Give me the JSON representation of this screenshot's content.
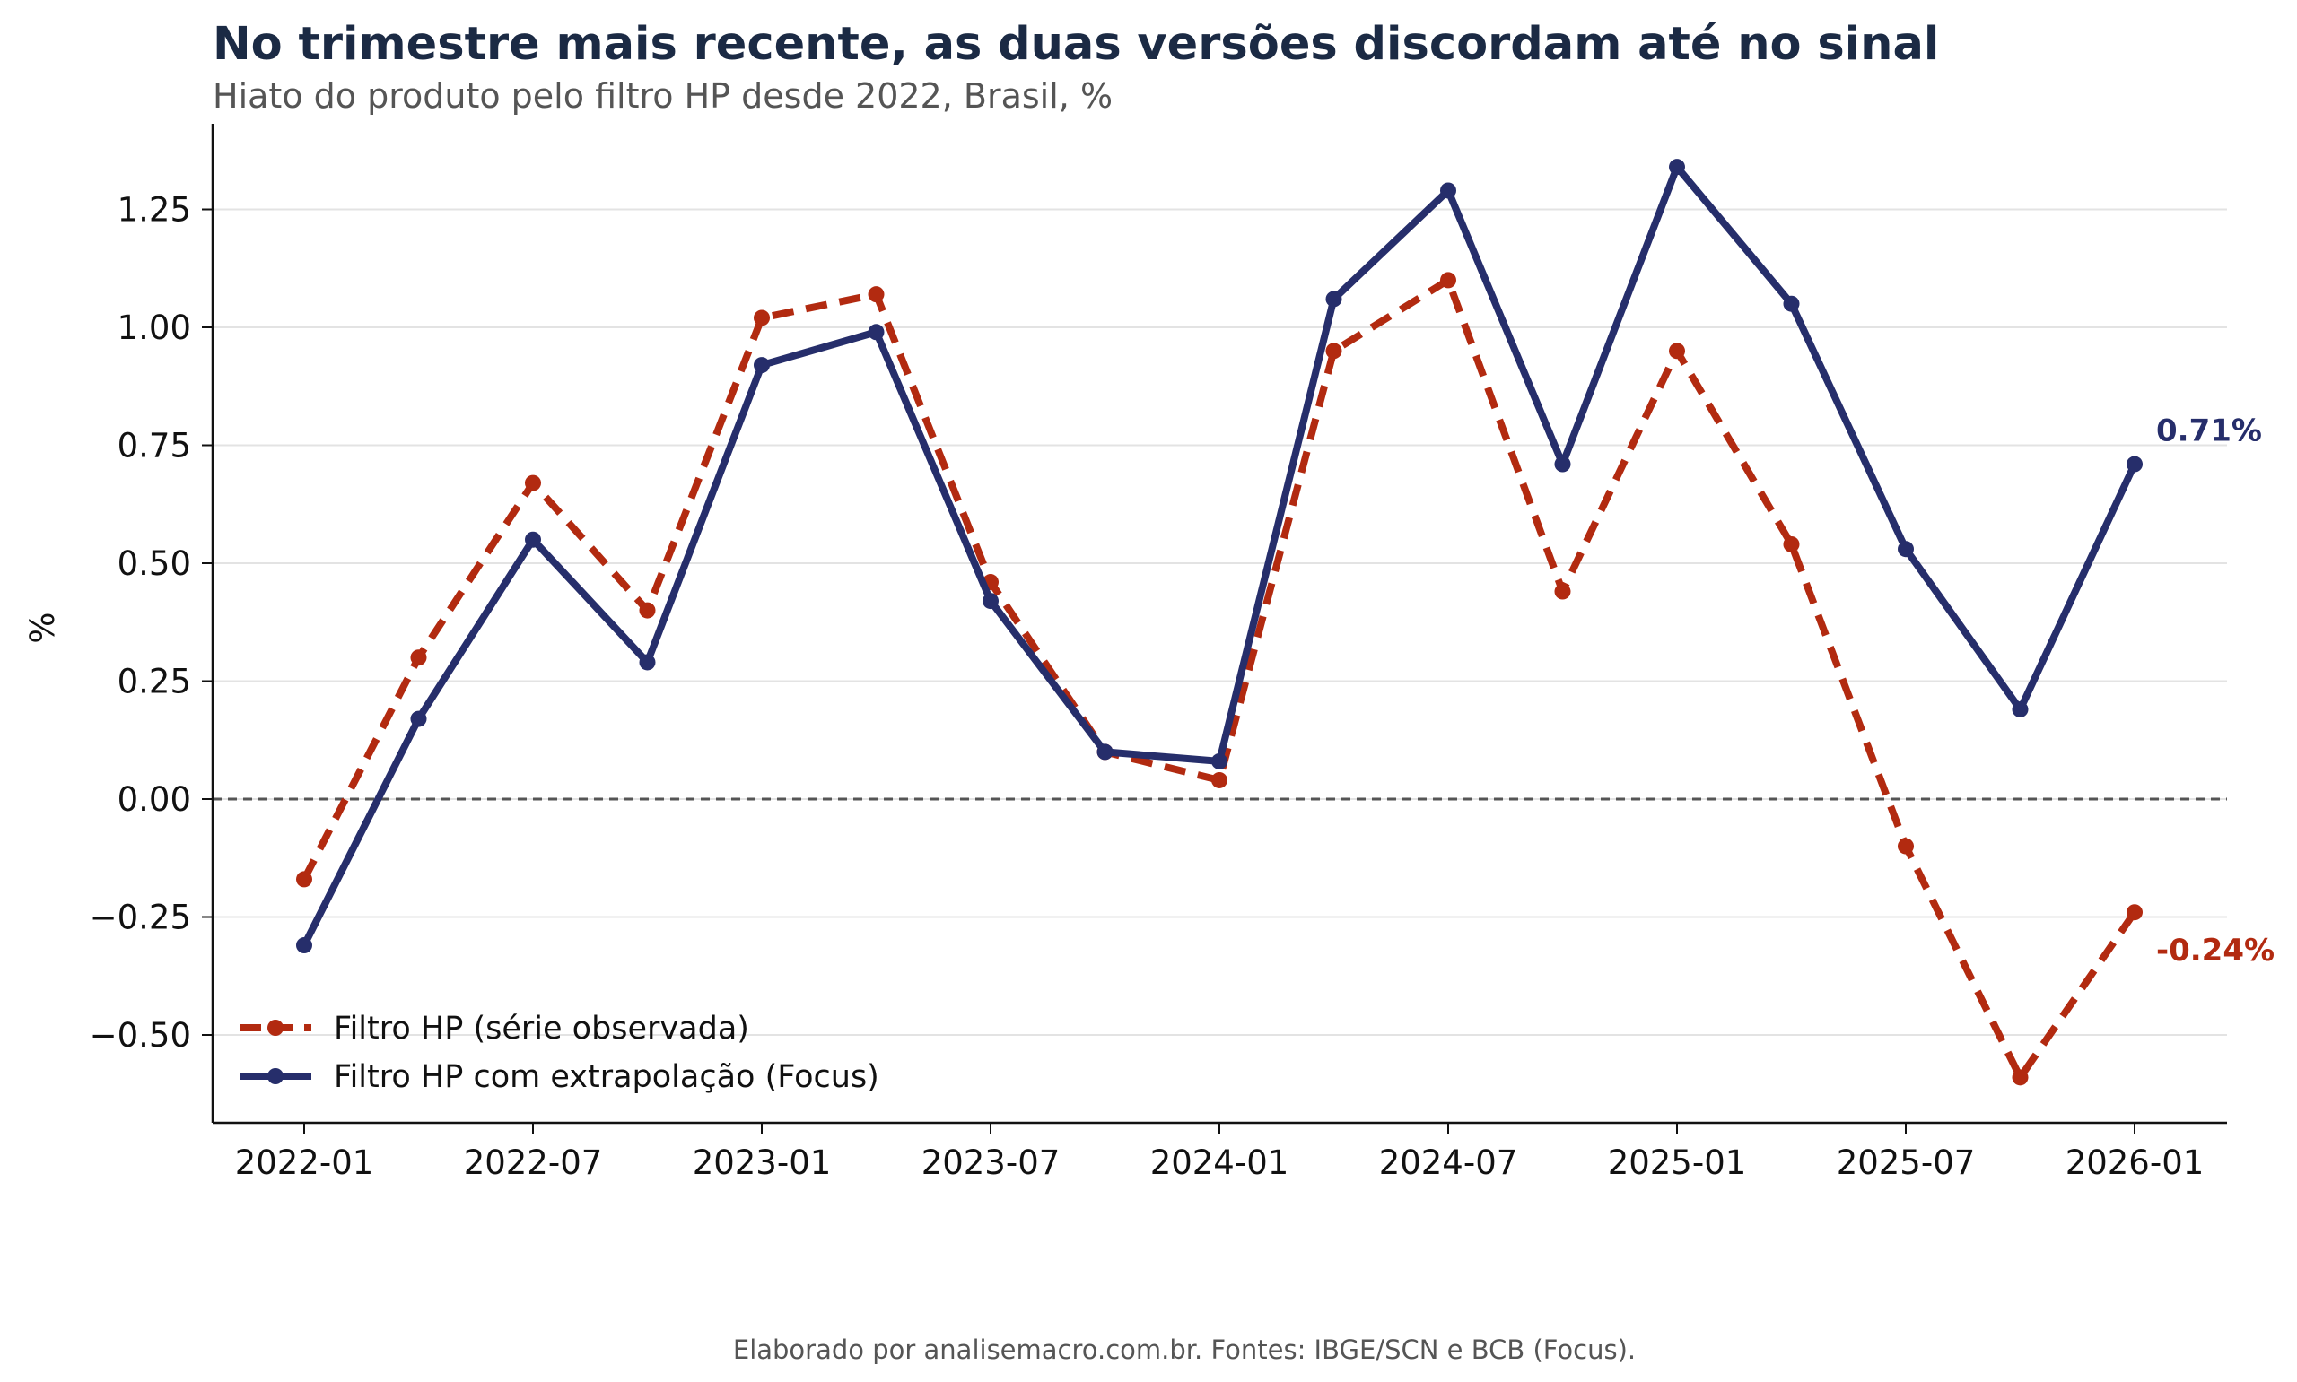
{
  "title": "No trimestre mais recente, as duas versões discordam até no sinal",
  "subtitle": "Hiato do produto pelo filtro HP desde 2022, Brasil, %",
  "footer": "Elaborado por analisemacro.com.br. Fontes: IBGE/SCN e BCB (Focus).",
  "chart_data": {
    "type": "line",
    "title": "No trimestre mais recente, as duas versões discordam até no sinal",
    "subtitle": "Hiato do produto pelo filtro HP desde 2022, Brasil, %",
    "xlabel": "",
    "ylabel": "%",
    "x": [
      "2022-01",
      "2022-04",
      "2022-07",
      "2022-10",
      "2023-01",
      "2023-04",
      "2023-07",
      "2023-10",
      "2024-01",
      "2024-04",
      "2024-07",
      "2024-10",
      "2025-01",
      "2025-04",
      "2025-07",
      "2025-10",
      "2026-01"
    ],
    "xticks": [
      "2022-01",
      "2022-07",
      "2023-01",
      "2023-07",
      "2024-01",
      "2024-07",
      "2025-01",
      "2025-07",
      "2026-01"
    ],
    "ylim": [
      -0.69,
      1.43
    ],
    "yticks": [
      -0.5,
      -0.25,
      0.0,
      0.25,
      0.5,
      0.75,
      1.0,
      1.25
    ],
    "ytick_labels": [
      "−0.50",
      "−0.25",
      "0.00",
      "0.25",
      "0.50",
      "0.75",
      "1.00",
      "1.25"
    ],
    "reference_line": 0,
    "grid": "horizontal",
    "legend_position": "lower-left",
    "series": [
      {
        "name": "Filtro HP (série observada)",
        "color": "#b22a10",
        "style": "dashed",
        "values": [
          -0.17,
          0.3,
          0.67,
          0.4,
          1.02,
          1.07,
          0.46,
          0.1,
          0.04,
          0.95,
          1.1,
          0.44,
          0.95,
          0.54,
          -0.1,
          -0.59,
          -0.24
        ],
        "end_label": "-0.24%"
      },
      {
        "name": "Filtro HP com extrapolação (Focus)",
        "color": "#262e6b",
        "style": "solid",
        "values": [
          -0.31,
          0.17,
          0.55,
          0.29,
          0.92,
          0.99,
          0.42,
          0.1,
          0.08,
          1.06,
          1.29,
          0.71,
          1.34,
          1.05,
          0.53,
          0.19,
          0.71
        ],
        "end_label": "0.71%"
      }
    ]
  }
}
